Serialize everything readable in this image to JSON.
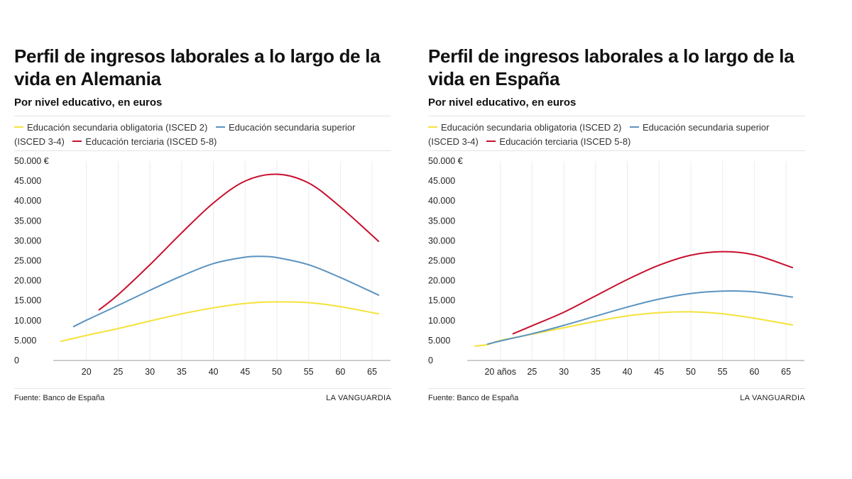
{
  "legend": {
    "items": [
      {
        "label": "Educación secundaria obligatoria (ISCED 2)",
        "color": "#f5e23a"
      },
      {
        "label": "Educación secundaria superior (ISCED 3-4)",
        "color": "#5b93c0"
      },
      {
        "label": "Educación terciaria (ISCED 5-8)",
        "color": "#c8102e"
      }
    ]
  },
  "footer": {
    "source": "Fuente: Banco de España",
    "brand": "LA VANGUARDIA"
  },
  "chart_data": [
    {
      "type": "line",
      "title": "Perfil de ingresos laborales a lo largo de la vida en Alemania",
      "subtitle": "Por nivel educativo, en euros",
      "x_ticks": [
        20,
        25,
        30,
        35,
        40,
        45,
        50,
        55,
        60,
        65
      ],
      "x_tick_labels": [
        "20",
        "25",
        "30",
        "35",
        "40",
        "45",
        "50",
        "55",
        "60",
        "65"
      ],
      "y_ticks": [
        0,
        5000,
        10000,
        15000,
        20000,
        25000,
        30000,
        35000,
        40000,
        45000,
        50000
      ],
      "y_tick_labels": [
        "0",
        "5.000",
        "10.000",
        "15.000",
        "20.000",
        "25.000",
        "30.000",
        "35.000",
        "40.000",
        "45.000",
        "50.000 €"
      ],
      "xlim": [
        15,
        67
      ],
      "ylim": [
        0,
        50000
      ],
      "grid": "vertical",
      "series": [
        {
          "name": "Educación secundaria obligatoria (ISCED 2)",
          "color": "#f5e23a",
          "x": [
            16,
            20,
            25,
            30,
            35,
            40,
            45,
            50,
            55,
            60,
            66
          ],
          "y": [
            4800,
            6300,
            8000,
            9900,
            11700,
            13200,
            14300,
            14700,
            14500,
            13500,
            11700
          ]
        },
        {
          "name": "Educación secundaria superior (ISCED 3-4)",
          "color": "#5b93c0",
          "x": [
            18,
            20,
            25,
            30,
            35,
            40,
            45,
            47.5,
            50,
            55,
            60,
            66
          ],
          "y": [
            8500,
            10100,
            13800,
            17600,
            21200,
            24300,
            25900,
            26100,
            25800,
            24000,
            20800,
            16400
          ]
        },
        {
          "name": "Educación terciaria (ISCED 5-8)",
          "color": "#c8102e",
          "x": [
            22,
            25,
            30,
            35,
            40,
            45,
            50,
            55,
            60,
            66
          ],
          "y": [
            12700,
            16500,
            24000,
            32000,
            39500,
            45000,
            46700,
            44500,
            38500,
            29900
          ]
        }
      ]
    },
    {
      "type": "line",
      "title": "Perfil de ingresos laborales a lo largo de la vida en España",
      "subtitle": "Por nivel educativo, en euros",
      "x_ticks": [
        20,
        25,
        30,
        35,
        40,
        45,
        50,
        55,
        60,
        65
      ],
      "x_tick_labels": [
        "20 años",
        "25",
        "30",
        "35",
        "40",
        "45",
        "50",
        "55",
        "60",
        "65"
      ],
      "y_ticks": [
        0,
        5000,
        10000,
        15000,
        20000,
        25000,
        30000,
        35000,
        40000,
        45000,
        50000
      ],
      "y_tick_labels": [
        "0",
        "5.000",
        "10.000",
        "15.000",
        "20.000",
        "25.000",
        "30.000",
        "35.000",
        "40.000",
        "45.000",
        "50.000 €"
      ],
      "xlim": [
        15,
        67
      ],
      "ylim": [
        0,
        50000
      ],
      "grid": "vertical",
      "series": [
        {
          "name": "Educación secundaria obligatoria (ISCED 2)",
          "color": "#f5e23a",
          "x": [
            16,
            18,
            20,
            25,
            30,
            35,
            40,
            45,
            50,
            55,
            60,
            66
          ],
          "y": [
            3600,
            4000,
            5000,
            6600,
            8200,
            9800,
            11200,
            12000,
            12200,
            11700,
            10600,
            8900
          ]
        },
        {
          "name": "Educación secundaria superior (ISCED 3-4)",
          "color": "#5b93c0",
          "x": [
            18,
            20,
            25,
            30,
            35,
            40,
            45,
            50,
            55,
            60,
            66
          ],
          "y": [
            4100,
            4900,
            6700,
            8800,
            11100,
            13400,
            15400,
            16800,
            17400,
            17200,
            15900
          ]
        },
        {
          "name": "Educación terciaria (ISCED 5-8)",
          "color": "#c8102e",
          "x": [
            22,
            25,
            30,
            35,
            40,
            45,
            50,
            55,
            60,
            66
          ],
          "y": [
            6700,
            8700,
            12100,
            16200,
            20300,
            23900,
            26400,
            27300,
            26500,
            23300
          ]
        }
      ]
    }
  ]
}
